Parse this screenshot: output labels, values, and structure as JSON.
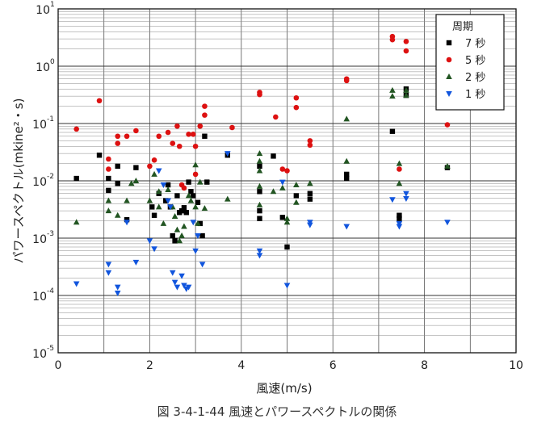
{
  "chart_data": {
    "type": "scatter",
    "xlabel": "風速(m/s)",
    "ylabel": "パワースペクトル(mkine²・s)",
    "xlim": [
      0,
      10
    ],
    "ylim_log10": [
      -5,
      1
    ],
    "x_scale": "linear",
    "y_scale": "log",
    "grid": true,
    "x_ticks": [
      "0",
      "2",
      "4",
      "6",
      "8",
      "10"
    ],
    "y_ticks": [
      "10",
      "10",
      "10",
      "10",
      "10",
      "10",
      "10"
    ],
    "y_tick_exponents": [
      "-5",
      "-4",
      "-3",
      "-2",
      "-1",
      "0",
      "1"
    ],
    "legend_title": "周期",
    "legend_position": "top-right",
    "caption": "図 3-4-1-44  風速とパワースペクトルの関係",
    "series": [
      {
        "name": "7 秒",
        "marker": "square",
        "color": "#000000",
        "points": [
          [
            0.4,
            0.011
          ],
          [
            0.9,
            0.028
          ],
          [
            1.1,
            0.011
          ],
          [
            1.1,
            0.0068
          ],
          [
            1.3,
            0.018
          ],
          [
            1.3,
            0.009
          ],
          [
            1.5,
            0.0021
          ],
          [
            1.7,
            0.017
          ],
          [
            2.05,
            0.0035
          ],
          [
            2.1,
            0.0025
          ],
          [
            2.2,
            0.006
          ],
          [
            2.35,
            0.0045
          ],
          [
            2.4,
            0.0085
          ],
          [
            2.45,
            0.0035
          ],
          [
            2.5,
            0.0011
          ],
          [
            2.55,
            0.0009
          ],
          [
            2.6,
            0.0055
          ],
          [
            2.65,
            0.0028
          ],
          [
            2.7,
            0.003
          ],
          [
            2.75,
            0.0034
          ],
          [
            2.8,
            0.0028
          ],
          [
            2.85,
            0.0095
          ],
          [
            2.9,
            0.0065
          ],
          [
            2.95,
            0.0055
          ],
          [
            3.05,
            0.0042
          ],
          [
            3.1,
            0.0018
          ],
          [
            3.15,
            0.0011
          ],
          [
            3.2,
            0.06
          ],
          [
            3.25,
            0.0095
          ],
          [
            3.7,
            0.028
          ],
          [
            4.4,
            0.018
          ],
          [
            4.4,
            0.0065
          ],
          [
            4.4,
            0.003
          ],
          [
            4.4,
            0.0022
          ],
          [
            4.7,
            0.027
          ],
          [
            4.9,
            0.0023
          ],
          [
            5.0,
            0.0007
          ],
          [
            5.2,
            0.0055
          ],
          [
            5.5,
            0.006
          ],
          [
            5.5,
            0.0048
          ],
          [
            6.3,
            0.013
          ],
          [
            6.3,
            0.011
          ],
          [
            7.3,
            0.073
          ],
          [
            7.45,
            0.0025
          ],
          [
            7.45,
            0.0022
          ],
          [
            7.6,
            0.4
          ],
          [
            7.6,
            0.31
          ],
          [
            8.5,
            0.017
          ]
        ]
      },
      {
        "name": "5 秒",
        "marker": "circle",
        "color": "#dd1111",
        "points": [
          [
            0.4,
            0.08
          ],
          [
            0.9,
            0.25
          ],
          [
            1.1,
            0.024
          ],
          [
            1.1,
            0.016
          ],
          [
            1.3,
            0.06
          ],
          [
            1.3,
            0.045
          ],
          [
            1.5,
            0.06
          ],
          [
            1.7,
            0.075
          ],
          [
            2.0,
            0.018
          ],
          [
            2.1,
            0.023
          ],
          [
            2.2,
            0.06
          ],
          [
            2.4,
            0.07
          ],
          [
            2.5,
            0.045
          ],
          [
            2.6,
            0.09
          ],
          [
            2.65,
            0.04
          ],
          [
            2.7,
            0.0085
          ],
          [
            2.75,
            0.0075
          ],
          [
            2.85,
            0.065
          ],
          [
            2.95,
            0.065
          ],
          [
            3.0,
            0.04
          ],
          [
            3.0,
            0.013
          ],
          [
            3.1,
            0.09
          ],
          [
            3.2,
            0.2
          ],
          [
            3.2,
            0.14
          ],
          [
            3.8,
            0.085
          ],
          [
            4.4,
            0.35
          ],
          [
            4.4,
            0.32
          ],
          [
            4.75,
            0.13
          ],
          [
            4.9,
            0.016
          ],
          [
            5.0,
            0.015
          ],
          [
            5.2,
            0.28
          ],
          [
            5.2,
            0.19
          ],
          [
            5.5,
            0.05
          ],
          [
            5.5,
            0.042
          ],
          [
            6.3,
            0.6
          ],
          [
            6.3,
            0.56
          ],
          [
            7.3,
            3.3
          ],
          [
            7.3,
            2.9
          ],
          [
            7.45,
            0.016
          ],
          [
            7.6,
            2.7
          ],
          [
            7.6,
            1.85
          ],
          [
            8.5,
            0.095
          ]
        ]
      },
      {
        "name": "2 秒",
        "marker": "triangle-up",
        "color": "#225522",
        "points": [
          [
            0.4,
            0.0019
          ],
          [
            1.1,
            0.0045
          ],
          [
            1.1,
            0.003
          ],
          [
            1.3,
            0.0025
          ],
          [
            1.5,
            0.0045
          ],
          [
            1.6,
            0.009
          ],
          [
            1.7,
            0.01
          ],
          [
            2.0,
            0.0045
          ],
          [
            2.1,
            0.013
          ],
          [
            2.2,
            0.0065
          ],
          [
            2.2,
            0.0035
          ],
          [
            2.3,
            0.0018
          ],
          [
            2.4,
            0.007
          ],
          [
            2.5,
            0.0035
          ],
          [
            2.55,
            0.0024
          ],
          [
            2.6,
            0.0014
          ],
          [
            2.65,
            0.0009
          ],
          [
            2.7,
            0.0011
          ],
          [
            2.75,
            0.0016
          ],
          [
            2.85,
            0.0055
          ],
          [
            2.9,
            0.0045
          ],
          [
            3.0,
            0.019
          ],
          [
            3.0,
            0.0035
          ],
          [
            3.05,
            0.0018
          ],
          [
            3.1,
            0.0095
          ],
          [
            3.2,
            0.0033
          ],
          [
            3.7,
            0.0048
          ],
          [
            4.4,
            0.03
          ],
          [
            4.4,
            0.022
          ],
          [
            4.4,
            0.015
          ],
          [
            4.4,
            0.008
          ],
          [
            4.4,
            0.0038
          ],
          [
            4.7,
            0.0065
          ],
          [
            4.9,
            0.0075
          ],
          [
            5.0,
            0.0022
          ],
          [
            5.0,
            0.0019
          ],
          [
            5.2,
            0.0085
          ],
          [
            5.2,
            0.0042
          ],
          [
            5.5,
            0.009
          ],
          [
            6.3,
            0.12
          ],
          [
            6.3,
            0.022
          ],
          [
            7.3,
            0.38
          ],
          [
            7.3,
            0.3
          ],
          [
            7.45,
            0.02
          ],
          [
            7.45,
            0.009
          ],
          [
            7.6,
            0.38
          ],
          [
            7.6,
            0.31
          ],
          [
            8.5,
            0.018
          ]
        ]
      },
      {
        "name": "1 秒",
        "marker": "triangle-down",
        "color": "#1155dd",
        "points": [
          [
            0.4,
            0.00016
          ],
          [
            1.1,
            0.00035
          ],
          [
            1.1,
            0.00025
          ],
          [
            1.3,
            0.00014
          ],
          [
            1.3,
            0.00011
          ],
          [
            1.5,
            0.0019
          ],
          [
            1.7,
            0.00038
          ],
          [
            2.0,
            0.0009
          ],
          [
            2.1,
            0.00065
          ],
          [
            2.2,
            0.015
          ],
          [
            2.3,
            0.0085
          ],
          [
            2.4,
            0.0045
          ],
          [
            2.45,
            0.0035
          ],
          [
            2.5,
            0.00025
          ],
          [
            2.55,
            0.00017
          ],
          [
            2.6,
            0.00014
          ],
          [
            2.7,
            0.00022
          ],
          [
            2.75,
            0.00015
          ],
          [
            2.8,
            0.00013
          ],
          [
            2.85,
            0.00014
          ],
          [
            2.95,
            0.0019
          ],
          [
            3.0,
            0.0006
          ],
          [
            3.05,
            0.0011
          ],
          [
            3.15,
            0.00035
          ],
          [
            3.7,
            0.03
          ],
          [
            4.4,
            0.0006
          ],
          [
            4.4,
            0.0005
          ],
          [
            4.9,
            0.0095
          ],
          [
            5.0,
            0.00015
          ],
          [
            5.5,
            0.0019
          ],
          [
            5.5,
            0.0017
          ],
          [
            6.3,
            0.0016
          ],
          [
            7.3,
            0.0047
          ],
          [
            7.45,
            0.0018
          ],
          [
            7.45,
            0.0016
          ],
          [
            7.6,
            0.006
          ],
          [
            7.6,
            0.0049
          ],
          [
            8.5,
            0.0019
          ]
        ]
      }
    ]
  }
}
